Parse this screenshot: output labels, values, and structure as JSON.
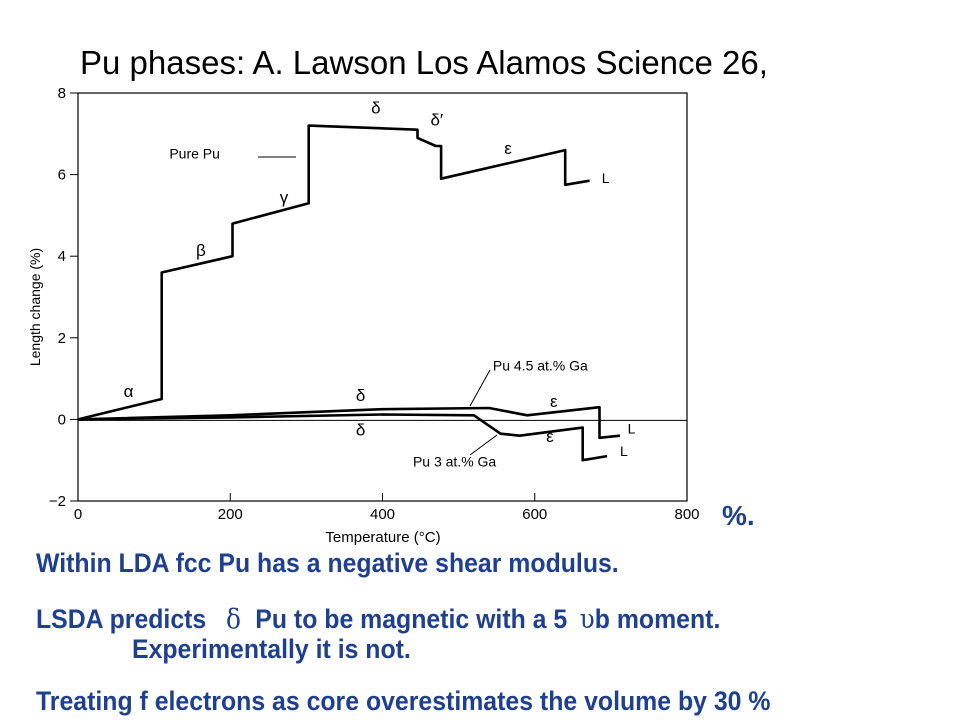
{
  "title": "Pu  phases: A. Lawson  Los Alamos Science 26,",
  "colors": {
    "text_blue": "#1f3f8f",
    "line": "#000000"
  },
  "bullets": {
    "pct_fragment": "%.",
    "line1": "Within LDA fcc Pu has a negative shear modulus.",
    "line2_pre": "LSDA predicts",
    "line2_symbol": "δ",
    "line2_mid": "Pu to be magnetic with a 5",
    "line2_symbol2": "υ",
    "line2_post": "b moment.",
    "line2_cont": "Experimentally it is not.",
    "line3": "Treating f electrons as core overestimates the volume by 30 %"
  },
  "chart_data": {
    "type": "line",
    "xlabel": "Temperature (°C)",
    "ylabel": "Length change (%)",
    "xlim": [
      0,
      800
    ],
    "ylim": [
      -2,
      8
    ],
    "xticks": [
      0,
      200,
      400,
      600,
      800
    ],
    "yticks": [
      -2,
      0,
      2,
      4,
      6,
      8
    ],
    "grid": false,
    "series": [
      {
        "name": "Pure Pu",
        "x": [
          0,
          110,
          110,
          203,
          203,
          303,
          303,
          446,
          446,
          470,
          477,
          477,
          640,
          640,
          672
        ],
        "y": [
          0,
          0.5,
          3.6,
          4.0,
          4.8,
          5.3,
          7.2,
          7.1,
          6.9,
          6.7,
          6.7,
          5.9,
          6.6,
          5.75,
          5.85
        ]
      },
      {
        "name": "Pu 4.5 at.% Ga",
        "x": [
          0,
          200,
          400,
          540,
          590,
          685,
          685,
          712
        ],
        "y": [
          0,
          0.1,
          0.25,
          0.28,
          0.1,
          0.3,
          -0.45,
          -0.4
        ]
      },
      {
        "name": "Pu 3 at.% Ga",
        "x": [
          0,
          200,
          400,
          520,
          555,
          580,
          663,
          663,
          695
        ],
        "y": [
          0,
          0.05,
          0.12,
          0.1,
          -0.35,
          -0.4,
          -0.2,
          -1.0,
          -0.9
        ]
      }
    ],
    "annotations": [
      {
        "text": "Pure Pu",
        "x": 120,
        "y": 6.4
      },
      {
        "text": "α",
        "x": 60,
        "y": 0.55
      },
      {
        "text": "β",
        "x": 155,
        "y": 4.0
      },
      {
        "text": "γ",
        "x": 265,
        "y": 5.3
      },
      {
        "text": "δ",
        "x": 385,
        "y": 7.5
      },
      {
        "text": "δ′",
        "x": 463,
        "y": 7.2
      },
      {
        "text": "ε",
        "x": 560,
        "y": 6.5
      },
      {
        "text": "L",
        "x": 688,
        "y": 5.8
      },
      {
        "text": "Pu 4.5 at.% Ga",
        "x": 545,
        "y": 1.2
      },
      {
        "text": "δ",
        "x": 365,
        "y": 0.45
      },
      {
        "text": "ε",
        "x": 620,
        "y": 0.3
      },
      {
        "text": "L",
        "x": 722,
        "y": -0.35
      },
      {
        "text": "δ",
        "x": 365,
        "y": -0.4
      },
      {
        "text": "ε",
        "x": 615,
        "y": -0.55
      },
      {
        "text": "L",
        "x": 712,
        "y": -0.9
      },
      {
        "text": "Pu 3 at.% Ga",
        "x": 440,
        "y": -1.15
      }
    ]
  }
}
